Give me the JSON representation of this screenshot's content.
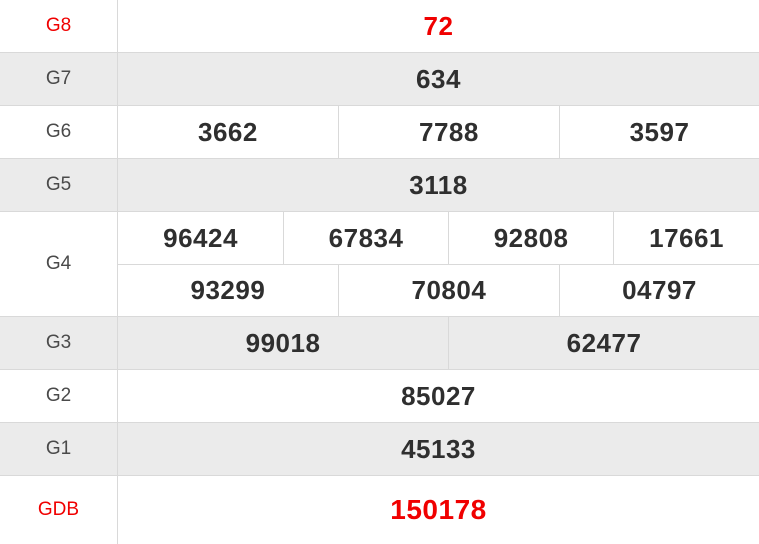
{
  "table": {
    "rows": [
      {
        "label": "G8",
        "accent": true,
        "large": false,
        "cells": [
          [
            "72"
          ]
        ]
      },
      {
        "label": "G7",
        "accent": false,
        "large": false,
        "cells": [
          [
            "634"
          ]
        ]
      },
      {
        "label": "G6",
        "accent": false,
        "large": false,
        "cells": [
          [
            "3662",
            "7788",
            "3597"
          ]
        ]
      },
      {
        "label": "G5",
        "accent": false,
        "large": false,
        "cells": [
          [
            "3118"
          ]
        ]
      },
      {
        "label": "G4",
        "accent": false,
        "large": false,
        "cells": [
          [
            "96424",
            "67834",
            "92808",
            "17661"
          ],
          [
            "93299",
            "70804",
            "04797"
          ]
        ]
      },
      {
        "label": "G3",
        "accent": false,
        "large": false,
        "cells": [
          [
            "99018",
            "62477"
          ]
        ]
      },
      {
        "label": "G2",
        "accent": false,
        "large": false,
        "cells": [
          [
            "85027"
          ]
        ]
      },
      {
        "label": "G1",
        "accent": false,
        "large": false,
        "cells": [
          [
            "45133"
          ]
        ]
      },
      {
        "label": "GDB",
        "accent": true,
        "large": true,
        "cells": [
          [
            "150178"
          ]
        ]
      }
    ]
  },
  "colors": {
    "accent_red": "#f00000",
    "row_shade": "#ebebeb",
    "border": "#d9d9d9",
    "label_text": "#4a4a4a",
    "value_text": "#2f2f2f"
  }
}
